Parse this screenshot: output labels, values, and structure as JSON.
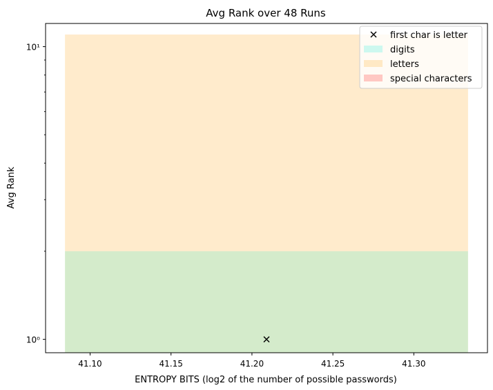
{
  "chart_data": {
    "type": "scatter",
    "title": "Avg Rank over 48 Runs",
    "xlabel": "ENTROPY BITS (log2 of the number of possible passwords)",
    "ylabel": "Avg Rank",
    "xlim": [
      41.0725,
      41.3455
    ],
    "ylim": [
      0.9,
      12.0
    ],
    "yscale": "log",
    "grid": false,
    "legend_position": "top-right",
    "x_ticks": [
      41.1,
      41.15,
      41.2,
      41.25,
      41.3
    ],
    "x_tick_labels": [
      "41.10",
      "41.15",
      "41.20",
      "41.25",
      "41.30"
    ],
    "y_major_ticks": [
      1,
      10
    ],
    "y_minor_ticks": [
      2,
      3,
      4,
      5,
      6,
      7,
      8,
      9
    ],
    "y_tick_labels": [
      "10⁰",
      "10¹"
    ],
    "bands": [
      {
        "label": "digits",
        "x_range": [
          41.0845,
          41.3335
        ],
        "y_range": [
          0.9,
          2.0
        ],
        "color": "#d4ebcb",
        "legend_color": "#cdf8ef"
      },
      {
        "label": "letters",
        "x_range": [
          41.0845,
          41.3335
        ],
        "y_range": [
          2.0,
          11.0
        ],
        "color": "#ffebcc",
        "legend_color": "#ffe9c5"
      },
      {
        "label": "special characters",
        "x_range": null,
        "y_range": null,
        "color": "#ffc8c3",
        "legend_color": "#ffc8c3"
      }
    ],
    "series": [
      {
        "name": "first char is letter",
        "marker": "x",
        "color": "#000000",
        "points": [
          {
            "x": 41.209,
            "y": 1.0
          }
        ]
      }
    ]
  }
}
